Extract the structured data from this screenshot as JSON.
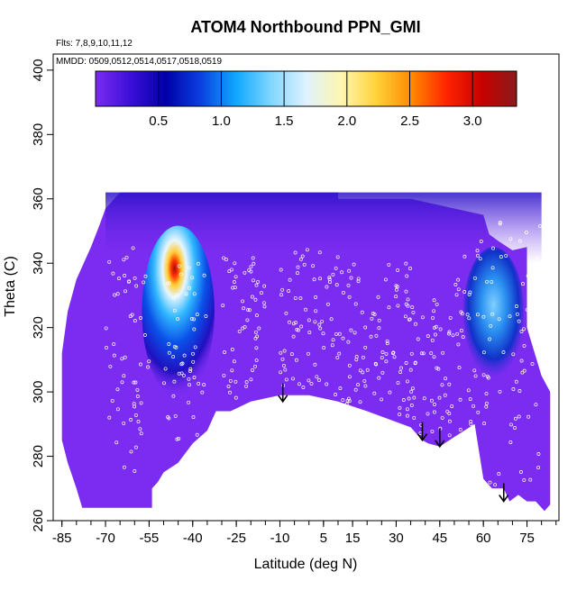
{
  "chart_data": {
    "type": "heatmap",
    "title": "ATOM4 Northbound PPN_GMI",
    "xlabel": "Latitude (deg N)",
    "ylabel": "Theta (C)",
    "xlim": [
      -88,
      86
    ],
    "ylim": [
      260,
      405
    ],
    "x_ticks": [
      -85,
      -70,
      -55,
      -40,
      -25,
      -10,
      5,
      15,
      30,
      45,
      60,
      75
    ],
    "x_tick_labels": [
      "-85",
      "-70",
      "-55",
      "-40",
      "-25",
      "-10",
      "5",
      "15",
      "30",
      "45",
      "60",
      "75"
    ],
    "y_ticks": [
      260,
      280,
      300,
      320,
      340,
      360,
      380,
      400
    ],
    "y_tick_labels": [
      "260",
      "280",
      "300",
      "320",
      "340",
      "360",
      "380",
      "400"
    ],
    "annotations": {
      "flights": "Flts: 7,8,9,10,11,12",
      "dates": "MMDD: 0509,0512,0514,0517,0518,0519"
    },
    "colorbar": {
      "range": [
        0,
        3.35
      ],
      "ticks": [
        0.5,
        1.0,
        1.5,
        2.0,
        2.5,
        3.0
      ],
      "tick_labels": [
        "0.5",
        "1.0",
        "1.5",
        "2.0",
        "2.5",
        "3.0"
      ],
      "colors": [
        "#7b2cf0",
        "#3a0fd8",
        "#0000a8",
        "#0a40e0",
        "#0fa8ff",
        "#7fd6ff",
        "#dff2ff",
        "#fff6b0",
        "#ffd23a",
        "#ff8a00",
        "#ff2400",
        "#c80000",
        "#8b1a1a"
      ]
    },
    "field": {
      "background_color": "#7b2cf0",
      "features": [
        {
          "name": "southern plume",
          "lat": [
            -55,
            -35
          ],
          "theta": [
            300,
            350
          ],
          "peak_value": 3.1,
          "peak_lat": -40,
          "peak_theta": 333
        },
        {
          "name": "northern enhancement",
          "lat": [
            55,
            72
          ],
          "theta": [
            305,
            345
          ],
          "peak_value": 1.3
        },
        {
          "name": "upper dark band",
          "lat": [
            -70,
            80
          ],
          "theta": [
            340,
            362
          ],
          "value": 0.3
        }
      ]
    },
    "arrows_lat": [
      -9,
      39,
      45,
      67
    ],
    "arrows_theta_tip": [
      297,
      285,
      283,
      266
    ]
  }
}
